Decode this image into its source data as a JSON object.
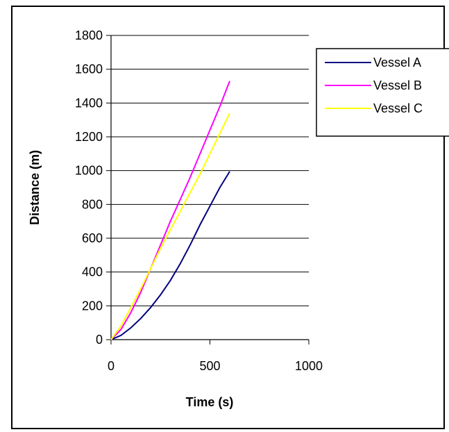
{
  "chart_data": {
    "type": "line",
    "title": "",
    "xlabel": "Time (s)",
    "ylabel": "Distance (m)",
    "xlim": [
      0,
      1000
    ],
    "ylim": [
      0,
      1800
    ],
    "xticks": [
      0,
      500,
      1000
    ],
    "yticks": [
      0,
      200,
      400,
      600,
      800,
      1000,
      1200,
      1400,
      1600,
      1800
    ],
    "grid": "horizontal",
    "legend_position": "right",
    "series": [
      {
        "name": "Vessel A",
        "color": "#000080",
        "x": [
          0,
          50,
          100,
          150,
          200,
          250,
          300,
          350,
          400,
          450,
          500,
          550,
          600
        ],
        "y": [
          0,
          25,
          70,
          125,
          190,
          265,
          350,
          450,
          560,
          680,
          790,
          900,
          995
        ]
      },
      {
        "name": "Vessel B",
        "color": "#FF00FF",
        "x": [
          0,
          50,
          100,
          150,
          200,
          250,
          300,
          350,
          400,
          450,
          500,
          550,
          600
        ],
        "y": [
          0,
          60,
          160,
          280,
          420,
          560,
          700,
          830,
          960,
          1100,
          1240,
          1380,
          1530
        ]
      },
      {
        "name": "Vessel C",
        "color": "#FFFF00",
        "x": [
          0,
          50,
          100,
          150,
          200,
          250,
          300,
          350,
          400,
          450,
          500,
          550,
          600
        ],
        "y": [
          0,
          80,
          190,
          300,
          420,
          540,
          650,
          760,
          870,
          980,
          1100,
          1220,
          1340
        ]
      }
    ]
  }
}
